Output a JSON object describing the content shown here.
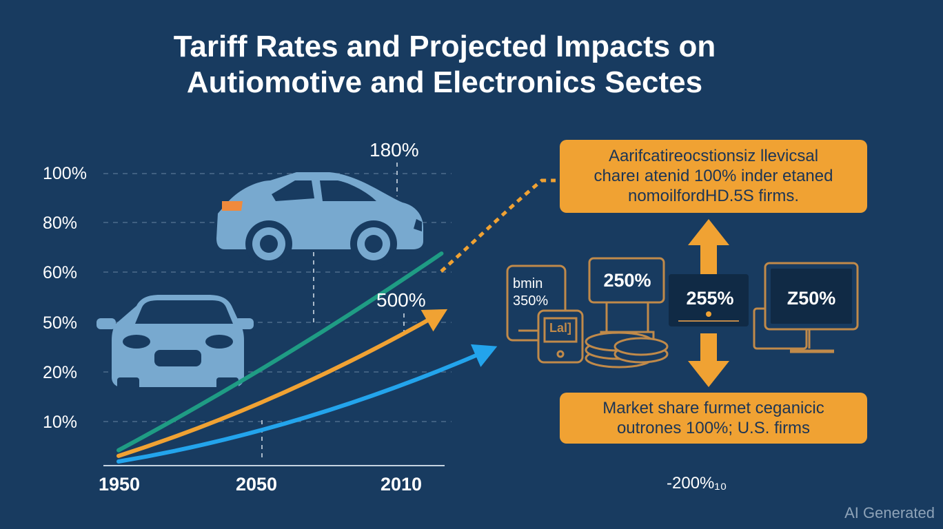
{
  "title_line1": "Tariff Rates and Projected Impacts on",
  "title_line2": "Autiomotive and Electronics Sectes",
  "chart_data": {
    "type": "line",
    "title": "Tariff Rates and Projected Impacts on Autiomotive and Electronics Sectes",
    "y_ticks": [
      "100%",
      "80%",
      "60%",
      "50%",
      "20%",
      "10%"
    ],
    "x_ticks": [
      "1950",
      "2050",
      "2010"
    ],
    "series": [
      {
        "color": "#1f9c84",
        "values": [
          4,
          74
        ]
      },
      {
        "color": "#f0a233",
        "values": [
          2,
          53
        ]
      },
      {
        "color": "#23a4ec",
        "values": [
          0,
          40
        ]
      }
    ],
    "annotations": [
      "180%",
      "500%"
    ],
    "grid": true,
    "legend": "none"
  },
  "callouts": {
    "top": [
      "Aarifcatireocstionsiz llevicsal",
      "chareı atenid 100% inder etaned",
      "nomoilfordHD.5S firms."
    ],
    "bottom": [
      "Market share furmet ceganicic",
      "outrones 100%; U.S. firms"
    ]
  },
  "device_values": {
    "phone_text": [
      "bmin",
      "350%"
    ],
    "tablet_text": "Lal]",
    "printer_value": "250%",
    "center_value": "255%",
    "monitor_value": "Z50%"
  },
  "footer_value": "-200%₁₀",
  "watermark": "AI Generated",
  "colors": {
    "background": "#183b60",
    "accent_orange": "#f0a233",
    "car_blue": "#78a9cf",
    "green_line": "#1f9c84",
    "blue_line": "#23a4ec",
    "device_outline": "#c08a4a"
  }
}
